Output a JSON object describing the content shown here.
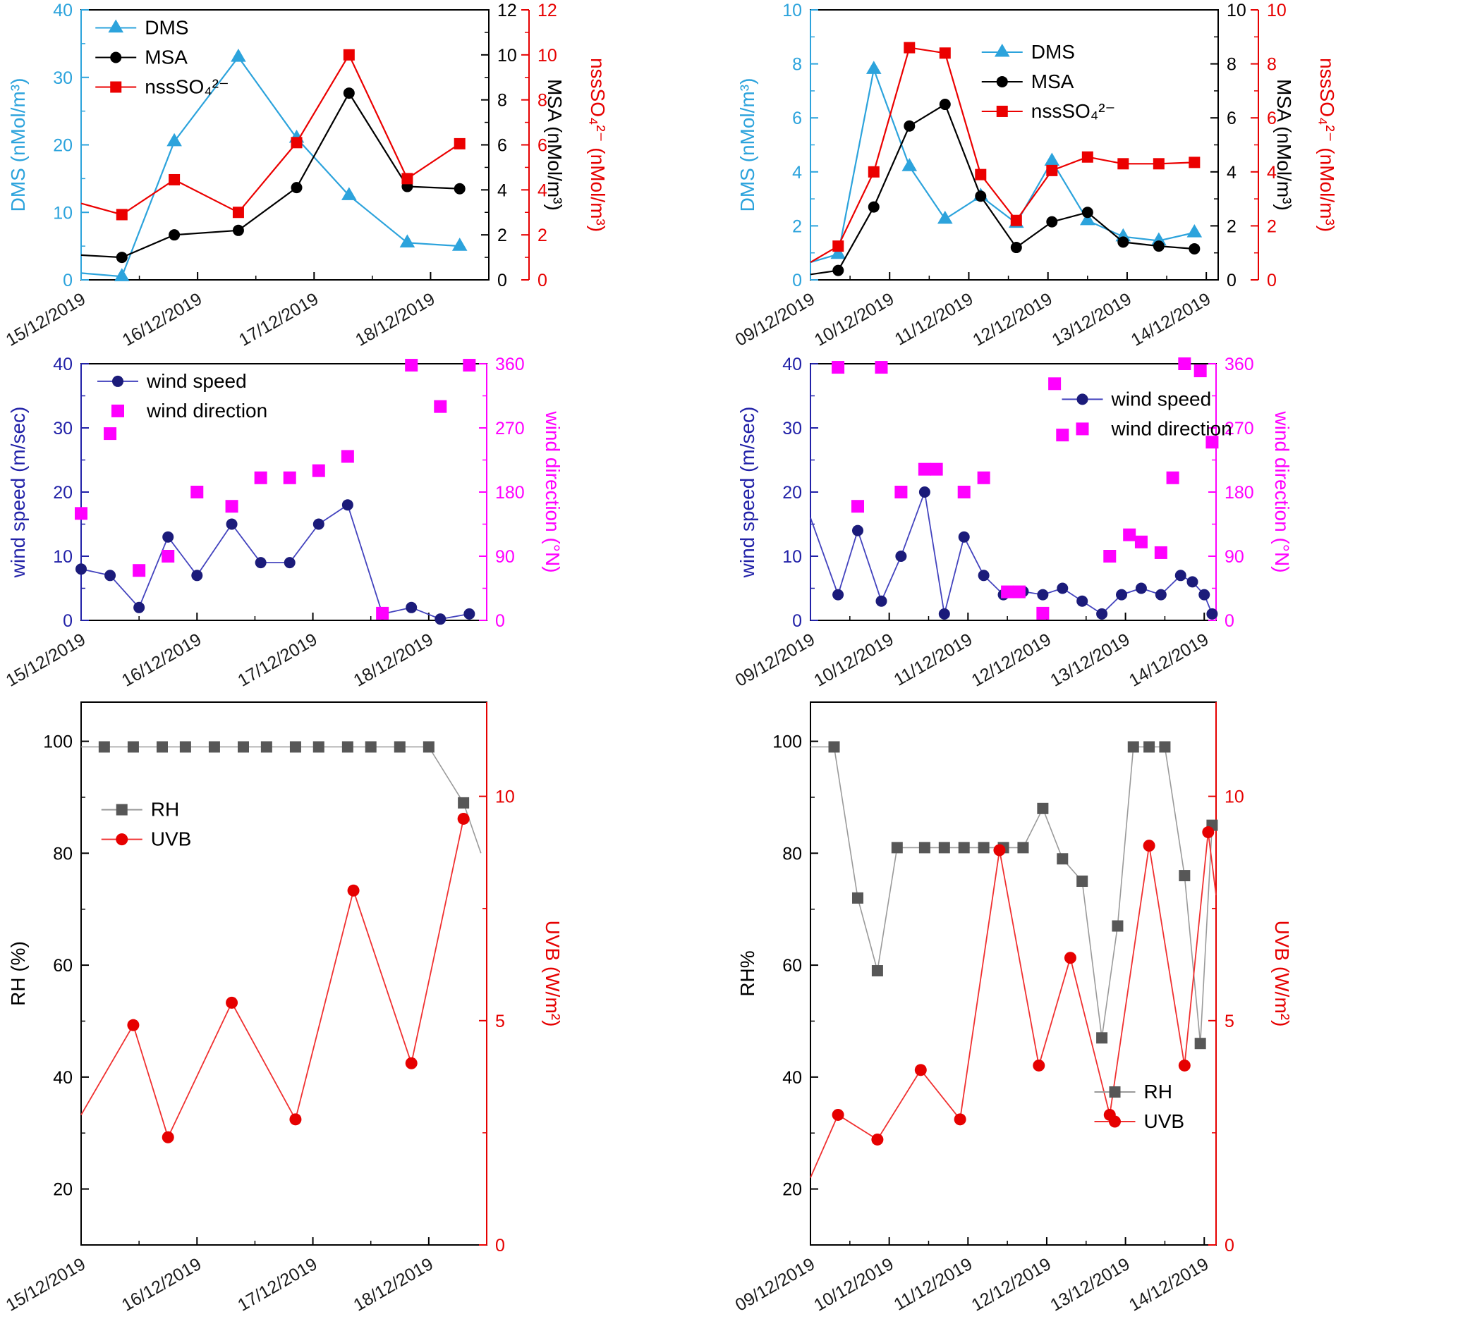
{
  "figure": {
    "description": "Six-panel time-series figure: DMS/MSA/nssSO4, wind speed/direction, RH/UVB for two periods (15-18 Dec 2019 and 09-14 Dec 2019)"
  },
  "chart_data": [
    {
      "type": "line",
      "name": "dms-msa-nsssulfate-period1",
      "x": {
        "min": 15,
        "max": 18.5,
        "minor": 0.5,
        "ticks": [
          15,
          16,
          17,
          18
        ],
        "labels": [
          "15/12/2019",
          "16/12/2019",
          "17/12/2019",
          "18/12/2019"
        ]
      },
      "axes": {
        "left": {
          "label": "DMS (nMol/m³)",
          "color": "#2CA3DC",
          "min": 0,
          "max": 40,
          "ticks": [
            0,
            10,
            20,
            30,
            40
          ],
          "minor": 5
        },
        "right": {
          "label": "MSA (nMol/m³)",
          "color": "#000000",
          "min": 0,
          "max": 12,
          "ticks": [
            0,
            2,
            4,
            6,
            8,
            10,
            12
          ],
          "minor": 1
        },
        "right2": {
          "label": "nssSO₄²⁻ (nMol/m³)",
          "color": "#E60000",
          "min": 0,
          "max": 12,
          "ticks": [
            0,
            2,
            4,
            6,
            8,
            10,
            12
          ],
          "minor": 1,
          "offset": 57
        }
      },
      "series": [
        {
          "name": "DMS",
          "axis": "left",
          "color": "#2CA3DC",
          "marker": "triangle",
          "ms": 9,
          "pre": [
            [
              15.0,
              1.0
            ]
          ],
          "x": [
            15.35,
            15.8,
            16.35,
            16.85,
            17.3,
            17.8,
            18.25
          ],
          "y": [
            0.5,
            20.5,
            33,
            21,
            12.5,
            5.5,
            5.0
          ]
        },
        {
          "name": "MSA",
          "axis": "right",
          "color": "#000000",
          "marker": "circle",
          "ms": 8,
          "pre": [
            [
              15.0,
              1.1
            ]
          ],
          "x": [
            15.35,
            15.8,
            16.35,
            16.85,
            17.3,
            17.8,
            18.25
          ],
          "y": [
            1.0,
            2.0,
            2.2,
            4.1,
            8.3,
            4.15,
            4.05
          ]
        },
        {
          "name": "nssSO₄²⁻",
          "axis": "right2",
          "color": "#EB0000",
          "marker": "square",
          "ms": 8,
          "pre": [
            [
              15.0,
              3.4
            ]
          ],
          "x": [
            15.35,
            15.8,
            16.35,
            16.85,
            17.3,
            17.8,
            18.25
          ],
          "y": [
            2.9,
            4.45,
            3.0,
            6.1,
            10.0,
            4.5,
            6.05
          ]
        }
      ],
      "legend": {
        "fx": 0.035,
        "fy": 0.03,
        "items": [
          0,
          1,
          2
        ]
      }
    },
    {
      "type": "line",
      "name": "dms-msa-nsssulfate-period2",
      "x": {
        "min": 9,
        "max": 14.15,
        "minor": 0.5,
        "ticks": [
          9,
          10,
          11,
          12,
          13,
          14
        ],
        "labels": [
          "09/12/2019",
          "10/12/2019",
          "11/12/2019",
          "12/12/2019",
          "13/12/2019",
          "14/12/2019"
        ]
      },
      "axes": {
        "left": {
          "label": "DMS (nMol/m³)",
          "color": "#2CA3DC",
          "min": 0,
          "max": 10,
          "ticks": [
            0,
            2,
            4,
            6,
            8,
            10
          ],
          "minor": 1
        },
        "right": {
          "label": "MSA (nMol/m³)",
          "color": "#000000",
          "min": 0,
          "max": 10,
          "ticks": [
            0,
            2,
            4,
            6,
            8,
            10
          ],
          "minor": 1
        },
        "right2": {
          "label": "nssSO₄²⁻ (nMol/m³)",
          "color": "#E60000",
          "min": 0,
          "max": 10,
          "ticks": [
            0,
            2,
            4,
            6,
            8,
            10
          ],
          "minor": 1,
          "offset": 57
        }
      },
      "series": [
        {
          "name": "DMS",
          "axis": "left",
          "color": "#2CA3DC",
          "marker": "triangle",
          "ms": 9,
          "pre": [
            [
              9.0,
              0.65
            ]
          ],
          "x": [
            9.35,
            9.8,
            10.25,
            10.7,
            11.15,
            11.6,
            12.05,
            12.5,
            12.95,
            13.4,
            13.85
          ],
          "y": [
            0.95,
            7.8,
            4.2,
            2.25,
            3.1,
            2.1,
            4.4,
            2.2,
            1.6,
            1.45,
            1.75
          ]
        },
        {
          "name": "MSA",
          "axis": "right",
          "color": "#000000",
          "marker": "circle",
          "ms": 8,
          "pre": [
            [
              9.0,
              0.2
            ]
          ],
          "x": [
            9.35,
            9.8,
            10.25,
            10.7,
            11.15,
            11.6,
            12.05,
            12.5,
            12.95,
            13.4,
            13.85
          ],
          "y": [
            0.35,
            2.7,
            5.7,
            6.5,
            3.1,
            1.2,
            2.15,
            2.5,
            1.4,
            1.25,
            1.15
          ]
        },
        {
          "name": "nssSO₄²⁻",
          "axis": "right2",
          "color": "#EB0000",
          "marker": "square",
          "ms": 8,
          "pre": [
            [
              9.0,
              0.65
            ]
          ],
          "x": [
            9.35,
            9.8,
            10.25,
            10.7,
            11.15,
            11.6,
            12.05,
            12.5,
            12.95,
            13.4,
            13.85
          ],
          "y": [
            1.25,
            4.0,
            8.6,
            8.4,
            3.9,
            2.2,
            4.05,
            4.55,
            4.3,
            4.3,
            4.35
          ]
        }
      ],
      "legend": {
        "fx": 0.42,
        "fy": 0.12,
        "items": [
          0,
          1,
          2
        ]
      }
    },
    {
      "type": "line",
      "name": "wind-period1",
      "x": {
        "min": 15,
        "max": 18.5,
        "minor": 0.5,
        "ticks": [
          15,
          16,
          17,
          18
        ],
        "labels": [
          "15/12/2019",
          "16/12/2019",
          "17/12/2019",
          "18/12/2019"
        ]
      },
      "axes": {
        "left": {
          "label": "wind speed (m/sec)",
          "color": "#2222A8",
          "min": 0,
          "max": 40,
          "ticks": [
            0,
            10,
            20,
            30,
            40
          ],
          "minor": 5
        },
        "right": {
          "label": "wind direction (°N)",
          "color": "#FF00FF",
          "min": 0,
          "max": 360,
          "ticks": [
            0,
            90,
            180,
            270,
            360
          ],
          "minor": 45
        }
      },
      "series": [
        {
          "name": "wind speed",
          "axis": "left",
          "color": "#1B1B7A",
          "line_color": "#4343BE",
          "marker": "circle",
          "ms": 8,
          "lw": 1.8,
          "x": [
            15.0,
            15.25,
            15.5,
            15.75,
            16.0,
            16.3,
            16.55,
            16.8,
            17.05,
            17.3,
            17.6,
            17.85,
            18.1,
            18.35
          ],
          "y": [
            8,
            7,
            2,
            13,
            7,
            15,
            9,
            9,
            15,
            18,
            1,
            2,
            0.2,
            1
          ]
        },
        {
          "name": "wind direction",
          "axis": "right",
          "color": "#FF00FF",
          "marker": "square",
          "ms": 9,
          "line": false,
          "x": [
            15.0,
            15.25,
            15.5,
            15.75,
            16.0,
            16.3,
            16.55,
            16.8,
            17.05,
            17.3,
            17.6,
            17.85,
            18.1,
            18.35
          ],
          "y": [
            150,
            262,
            70,
            90,
            180,
            160,
            200,
            200,
            210,
            230,
            10,
            358,
            300,
            358
          ]
        }
      ],
      "legend": {
        "fx": 0.04,
        "fy": 0.03,
        "items": [
          0,
          1
        ]
      }
    },
    {
      "type": "line",
      "name": "wind-period2",
      "x": {
        "min": 9,
        "max": 14.15,
        "minor": 0.5,
        "ticks": [
          9,
          10,
          11,
          12,
          13,
          14
        ],
        "labels": [
          "09/12/2019",
          "10/12/2019",
          "11/12/2019",
          "12/12/2019",
          "13/12/2019",
          "14/12/2019"
        ]
      },
      "axes": {
        "left": {
          "label": "wind speed (m/sec)",
          "color": "#2222A8",
          "min": 0,
          "max": 40,
          "ticks": [
            0,
            10,
            20,
            30,
            40
          ],
          "minor": 5
        },
        "right": {
          "label": "wind direction (°N)",
          "color": "#FF00FF",
          "min": 0,
          "max": 360,
          "ticks": [
            0,
            90,
            180,
            270,
            360
          ],
          "minor": 45
        }
      },
      "series": [
        {
          "name": "wind speed",
          "axis": "left",
          "color": "#1B1B7A",
          "line_color": "#4343BE",
          "marker": "circle",
          "ms": 8,
          "lw": 1.8,
          "pre": [
            [
              9.0,
              16
            ]
          ],
          "x": [
            9.35,
            9.6,
            9.9,
            10.15,
            10.45,
            10.7,
            10.95,
            11.2,
            11.45,
            11.7,
            11.95,
            12.2,
            12.45,
            12.7,
            12.95,
            13.2,
            13.45,
            13.7,
            13.85,
            14.0,
            14.1
          ],
          "y": [
            4,
            14,
            3,
            10,
            20,
            1,
            13,
            7,
            4,
            4.5,
            4,
            5,
            3,
            1,
            4,
            5,
            4,
            7,
            6,
            4,
            1
          ]
        },
        {
          "name": "wind direction",
          "axis": "right",
          "color": "#FF00FF",
          "marker": "square",
          "ms": 9,
          "line": false,
          "x": [
            9.35,
            9.6,
            9.9,
            10.15,
            10.45,
            10.6,
            10.95,
            11.2,
            11.5,
            11.65,
            11.95,
            12.1,
            12.2,
            12.8,
            13.05,
            13.2,
            13.45,
            13.6,
            13.75,
            13.95,
            14.1
          ],
          "y": [
            355,
            160,
            355,
            180,
            212,
            212,
            180,
            200,
            40,
            40,
            10,
            332,
            260,
            90,
            120,
            110,
            95,
            200,
            360,
            350,
            250
          ]
        }
      ],
      "legend": {
        "fx": 0.62,
        "fy": 0.1,
        "items": [
          0,
          1
        ]
      }
    },
    {
      "type": "line",
      "name": "rh-uvb-period1",
      "x": {
        "min": 15,
        "max": 18.5,
        "minor": 0.5,
        "ticks": [
          15,
          16,
          17,
          18
        ],
        "labels": [
          "15/12/2019",
          "16/12/2019",
          "17/12/2019",
          "18/12/2019"
        ]
      },
      "axes": {
        "left": {
          "label": "RH (%)",
          "color": "#000000",
          "min": 10,
          "max": 107,
          "ticks": [
            20,
            40,
            60,
            80,
            100
          ],
          "minor": 10
        },
        "right": {
          "label": "UVB (W/m²)",
          "color": "#E60000",
          "min": 0,
          "max": 12.1,
          "ticks": [
            0,
            5,
            10
          ],
          "minor": 2.5
        }
      },
      "series": [
        {
          "name": "RH",
          "axis": "left",
          "color": "#575757",
          "line_color": "#9A9A9A",
          "marker": "square",
          "ms": 8,
          "lw": 1.6,
          "pre": [
            [
              15.0,
              99
            ]
          ],
          "x": [
            15.2,
            15.45,
            15.7,
            15.9,
            16.15,
            16.4,
            16.6,
            16.85,
            17.05,
            17.3,
            17.5,
            17.75,
            18.0,
            18.3
          ],
          "y": [
            99,
            99,
            99,
            99,
            99,
            99,
            99,
            99,
            99,
            99,
            99,
            99,
            99,
            89
          ],
          "post": [
            [
              18.45,
              80
            ]
          ]
        },
        {
          "name": "UVB",
          "axis": "right",
          "color": "#E60000",
          "line_color": "#F03030",
          "marker": "circle",
          "ms": 8.5,
          "lw": 1.8,
          "pre": [
            [
              15.0,
              2.9
            ]
          ],
          "x": [
            15.45,
            15.75,
            16.3,
            16.85,
            17.35,
            17.85,
            18.3
          ],
          "y": [
            4.9,
            2.4,
            5.4,
            2.8,
            7.9,
            4.05,
            9.5
          ]
        }
      ],
      "legend": {
        "fx": 0.05,
        "fy": 0.18,
        "items": [
          0,
          1
        ]
      }
    },
    {
      "type": "line",
      "name": "rh-uvb-period2",
      "x": {
        "min": 9,
        "max": 14.15,
        "minor": 0.5,
        "ticks": [
          9,
          10,
          11,
          12,
          13,
          14
        ],
        "labels": [
          "09/12/2019",
          "10/12/2019",
          "11/12/2019",
          "12/12/2019",
          "13/12/2019",
          "14/12/2019"
        ]
      },
      "axes": {
        "left": {
          "label": "RH%",
          "color": "#000000",
          "min": 10,
          "max": 107,
          "ticks": [
            20,
            40,
            60,
            80,
            100
          ],
          "minor": 10
        },
        "right": {
          "label": "UVB (W/m²)",
          "color": "#E60000",
          "min": 0,
          "max": 12.1,
          "ticks": [
            0,
            5,
            10
          ],
          "minor": 2.5
        }
      },
      "series": [
        {
          "name": "RH",
          "axis": "left",
          "color": "#575757",
          "line_color": "#9A9A9A",
          "marker": "square",
          "ms": 8,
          "lw": 1.6,
          "pre": [
            [
              9.0,
              99
            ]
          ],
          "x": [
            9.3,
            9.6,
            9.85,
            10.1,
            10.45,
            10.7,
            10.95,
            11.2,
            11.45,
            11.7,
            11.95,
            12.2,
            12.45,
            12.7,
            12.9,
            13.1,
            13.3,
            13.5,
            13.75,
            13.95,
            14.1
          ],
          "y": [
            99,
            72,
            59,
            81,
            81,
            81,
            81,
            81,
            81,
            81,
            88,
            79,
            75,
            47,
            67,
            99,
            99,
            99,
            76,
            46,
            85
          ]
        },
        {
          "name": "UVB",
          "axis": "right",
          "color": "#E60000",
          "line_color": "#F03030",
          "marker": "circle",
          "ms": 8.5,
          "lw": 1.8,
          "pre": [
            [
              9.0,
              1.5
            ]
          ],
          "x": [
            9.35,
            9.85,
            10.4,
            10.9,
            11.4,
            11.9,
            12.3,
            12.8,
            13.3,
            13.75,
            14.05
          ],
          "y": [
            2.9,
            2.35,
            3.9,
            2.8,
            8.8,
            4.0,
            6.4,
            2.9,
            8.9,
            4.0,
            9.2
          ],
          "post": [
            [
              14.15,
              7.8
            ]
          ]
        }
      ],
      "legend": {
        "fx": 0.7,
        "fy": 0.7,
        "items": [
          0,
          1
        ]
      }
    }
  ]
}
